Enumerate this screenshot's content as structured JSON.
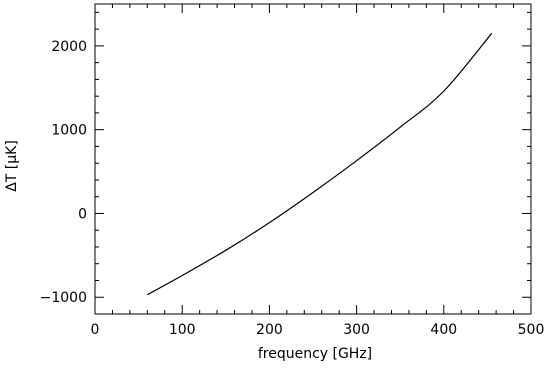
{
  "chart_data": {
    "type": "line",
    "title": "",
    "xlabel": "frequency [GHz]",
    "ylabel": "ΔT [μK]",
    "xlim": [
      0,
      500
    ],
    "ylim": [
      -1200,
      2500
    ],
    "x_ticks": [
      0,
      100,
      200,
      300,
      400,
      500
    ],
    "x_tick_labels": [
      "0",
      "100",
      "200",
      "300",
      "400",
      "500"
    ],
    "y_ticks": [
      -1000,
      0,
      1000,
      2000
    ],
    "y_tick_labels": [
      "−1000",
      "0",
      "1000",
      "2000"
    ],
    "x_minor_step": 20,
    "y_minor_step": 200,
    "grid": false,
    "series": [
      {
        "line_color": "#000000",
        "x": [
          60,
          100,
          150,
          200,
          250,
          300,
          350,
          400,
          455
        ],
        "y": [
          -970,
          -740,
          -440,
          -110,
          250,
          630,
          1030,
          1460,
          2150
        ]
      }
    ]
  }
}
